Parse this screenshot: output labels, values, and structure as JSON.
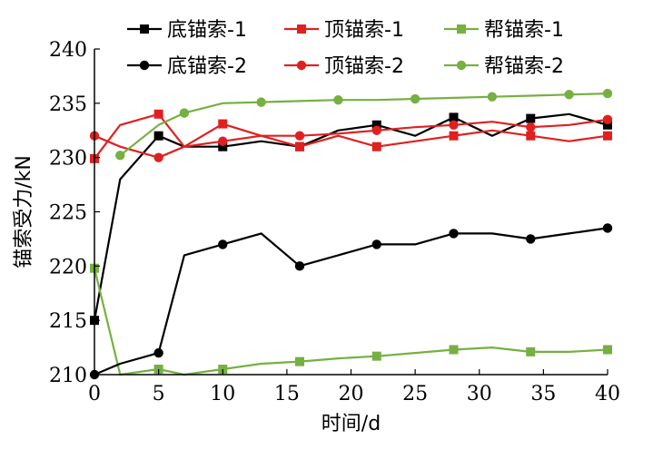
{
  "chart_data": {
    "type": "line",
    "xlabel": "时间/d",
    "ylabel": "锚索受力/kN",
    "xlim": [
      0,
      40
    ],
    "ylim": [
      210,
      240
    ],
    "xticks": [
      0,
      5,
      10,
      15,
      20,
      25,
      30,
      35,
      40
    ],
    "yticks": [
      210,
      215,
      220,
      225,
      230,
      235,
      240
    ],
    "legend_position": "top",
    "grid": false,
    "series": [
      {
        "name": "底锚索-1",
        "color": "#000000",
        "marker": "square",
        "x": [
          0,
          2,
          5,
          7,
          10,
          13,
          16,
          19,
          22,
          25,
          28,
          31,
          34,
          37,
          40
        ],
        "y": [
          215,
          228,
          232,
          231,
          231,
          231.5,
          231,
          232.5,
          233,
          232,
          233.7,
          232,
          233.6,
          234,
          233
        ],
        "marker_indices": [
          0,
          2,
          4,
          6,
          8,
          10,
          12,
          14
        ]
      },
      {
        "name": "顶锚索-1",
        "color": "#e02020",
        "marker": "square",
        "x": [
          0,
          2,
          5,
          7,
          10,
          13,
          16,
          19,
          22,
          25,
          28,
          31,
          34,
          37,
          40
        ],
        "y": [
          229.9,
          233,
          234,
          231,
          233.1,
          232,
          231,
          232,
          231,
          231.5,
          232,
          232.5,
          232,
          231.5,
          232
        ],
        "marker_indices": [
          0,
          2,
          4,
          6,
          8,
          10,
          12,
          14
        ]
      },
      {
        "name": "帮锚索-1",
        "color": "#76b041",
        "marker": "square",
        "x": [
          0,
          2,
          5,
          7,
          10,
          13,
          16,
          19,
          22,
          25,
          28,
          31,
          34,
          37,
          40
        ],
        "y": [
          219.8,
          210,
          210.5,
          210,
          210.5,
          211,
          211.2,
          211.5,
          211.7,
          212,
          212.3,
          212.5,
          212.1,
          212.1,
          212.3
        ],
        "marker_indices": [
          0,
          2,
          4,
          6,
          8,
          10,
          12,
          14
        ]
      },
      {
        "name": "底锚索-2",
        "color": "#000000",
        "marker": "circle",
        "x": [
          0,
          2,
          5,
          7,
          10,
          13,
          16,
          19,
          22,
          25,
          28,
          31,
          34,
          37,
          40
        ],
        "y": [
          210,
          211,
          212,
          221,
          222,
          223,
          220,
          221,
          222,
          222,
          223,
          223,
          222.5,
          223,
          223.5
        ],
        "marker_indices": [
          0,
          2,
          4,
          6,
          8,
          10,
          12,
          14
        ]
      },
      {
        "name": "顶锚索-2",
        "color": "#e02020",
        "marker": "circle",
        "x": [
          0,
          2,
          5,
          7,
          10,
          13,
          16,
          19,
          22,
          25,
          28,
          31,
          34,
          37,
          40
        ],
        "y": [
          232,
          231,
          230,
          231,
          231.5,
          232,
          232,
          232.2,
          232.5,
          232.8,
          233,
          233.3,
          232.8,
          233,
          233.5
        ],
        "marker_indices": [
          0,
          2,
          4,
          6,
          8,
          10,
          12,
          14
        ]
      },
      {
        "name": "帮锚索-2",
        "color": "#76b041",
        "marker": "circle",
        "x": [
          2,
          5,
          7,
          10,
          13,
          16,
          19,
          22,
          25,
          28,
          31,
          34,
          37,
          40
        ],
        "y": [
          230.2,
          233,
          234.1,
          235,
          235.1,
          235.2,
          235.3,
          235.3,
          235.4,
          235.5,
          235.6,
          235.7,
          235.8,
          235.9
        ],
        "marker_indices": [
          0,
          2,
          4,
          6,
          8,
          10,
          12,
          13
        ]
      }
    ]
  }
}
